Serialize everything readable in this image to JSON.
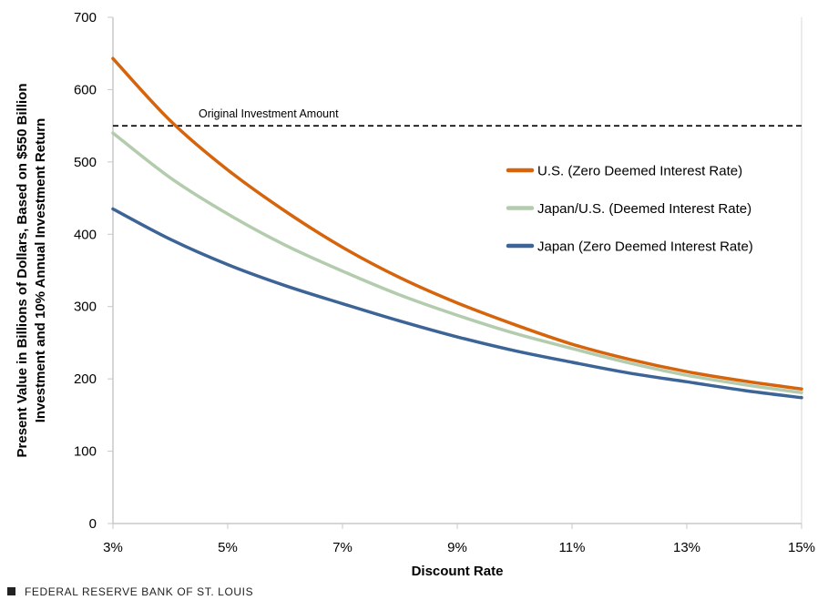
{
  "chart_data": {
    "type": "line",
    "xlabel": "Discount Rate",
    "ylabel": [
      "Present Value in Billions of Dollars, Based on $550 Billion",
      "Investment and 10% Annual Investment Return"
    ],
    "xlim": [
      3,
      15
    ],
    "ylim": [
      0,
      700
    ],
    "x_ticks": [
      3,
      5,
      7,
      9,
      11,
      13,
      15
    ],
    "x_tick_labels": [
      "3%",
      "5%",
      "7%",
      "9%",
      "11%",
      "13%",
      "15%"
    ],
    "y_ticks": [
      0,
      100,
      200,
      300,
      400,
      500,
      600,
      700
    ],
    "y_tick_labels": [
      "0",
      "100",
      "200",
      "300",
      "400",
      "500",
      "600",
      "700"
    ],
    "grid": false,
    "legend_position": "right",
    "x": [
      3,
      4,
      5,
      6,
      7,
      8,
      9,
      10,
      11,
      12,
      13,
      14,
      15
    ],
    "series": [
      {
        "name": "U.S. (Zero Deemed Interest Rate)",
        "color": "#D5640C",
        "values": [
          643,
          557,
          489,
          432,
          382,
          340,
          305,
          275,
          248,
          227,
          210,
          197,
          186
        ]
      },
      {
        "name": "Japan/U.S. (Deemed Interest Rate)",
        "color": "#B4CCAE",
        "values": [
          540,
          478,
          428,
          385,
          349,
          316,
          288,
          263,
          242,
          222,
          205,
          192,
          181
        ]
      },
      {
        "name": "Japan (Zero Deemed Interest Rate)",
        "color": "#3C6496",
        "values": [
          435,
          393,
          358,
          329,
          304,
          280,
          258,
          239,
          223,
          208,
          196,
          184,
          174
        ]
      }
    ],
    "reference_line": {
      "value": 550,
      "label": "Original Investment Amount",
      "style": "dashed",
      "color": "#000000"
    }
  },
  "footer": {
    "source": "FEDERAL RESERVE BANK OF ST. LOUIS"
  }
}
